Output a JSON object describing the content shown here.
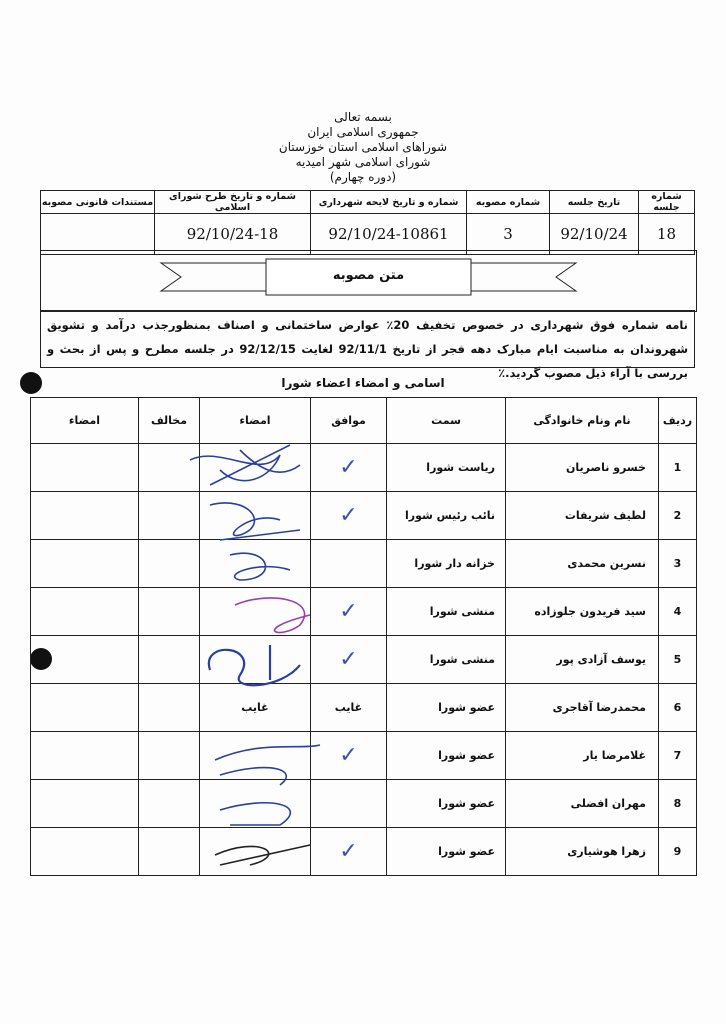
{
  "header": {
    "lines": [
      "بسمه تعالی",
      "جمهوری اسلامی ایران",
      "شوراهای اسلامی استان خوزستان",
      "شورای اسلامی شهر امیدیه",
      "(دوره چهارم)"
    ]
  },
  "session_table": {
    "headers": [
      "شماره جلسه",
      "تاریخ جلسه",
      "شماره مصوبه",
      "شماره و تاریخ  لایحه شهرداری",
      "شماره و تاریخ طرح شورای اسلامی",
      "مستندات قانونی مصوبه"
    ],
    "values": [
      "18",
      "92/10/24",
      "3",
      "92/10/24-10861",
      "92/10/24-18",
      ""
    ]
  },
  "banner_title": "متن مصوبه",
  "resolution_text": "نامه شماره فوق شهرداری در خصوص تخفیف 20٪ عوارض ساختمانی و اصناف بمنظورجذب درآمد و تشویق شهروندان به مناسبت ایام مبارک دهه فجر از تاریخ 92/11/1 لغایت 92/12/15 در جلسه مطرح و پس از بحث و بررسی با آراء ذیل مصوب گردید.٪",
  "members_title": "اسامی و امضاء اعضاء شورا",
  "members_table": {
    "headers": [
      "ردیف",
      "نام ونام خانوادگی",
      "سمت",
      "موافق",
      "امضاء",
      "مخالف",
      "امضاء"
    ],
    "rows": [
      {
        "no": "1",
        "name": "خسرو ناصریان",
        "role": "ریاست شورا",
        "agree": "✓",
        "sign": "",
        "oppose": "",
        "sign2": ""
      },
      {
        "no": "2",
        "name": "لطیف شریفات",
        "role": "نائب رئیس شورا",
        "agree": "✓",
        "sign": "",
        "oppose": "",
        "sign2": ""
      },
      {
        "no": "3",
        "name": "نسرین محمدی",
        "role": "خزانه دار شورا",
        "agree": "",
        "sign": "",
        "oppose": "",
        "sign2": ""
      },
      {
        "no": "4",
        "name": "سید فریدون جلوزاده",
        "role": "منشی شورا",
        "agree": "✓",
        "sign": "",
        "oppose": "",
        "sign2": ""
      },
      {
        "no": "5",
        "name": "یوسف آزادی پور",
        "role": "منشی شورا",
        "agree": "✓",
        "sign": "",
        "oppose": "",
        "sign2": ""
      },
      {
        "no": "6",
        "name": "محمدرضا آقاجری",
        "role": "عضو شورا",
        "agree": "غایب",
        "sign": "غایب",
        "oppose": "",
        "sign2": ""
      },
      {
        "no": "7",
        "name": "غلامرضا یار",
        "role": "عضو شورا",
        "agree": "✓",
        "sign": "",
        "oppose": "",
        "sign2": ""
      },
      {
        "no": "8",
        "name": "مهران افضلی",
        "role": "عضو شورا",
        "agree": "",
        "sign": "",
        "oppose": "",
        "sign2": ""
      },
      {
        "no": "9",
        "name": "زهرا هوشیاری",
        "role": "عضو شورا",
        "agree": "✓",
        "sign": "",
        "oppose": "",
        "sign2": ""
      }
    ]
  },
  "colors": {
    "ink_blue": "#2b3f9e",
    "ink_purple": "#9a3fb0",
    "ink_black": "#222222"
  }
}
